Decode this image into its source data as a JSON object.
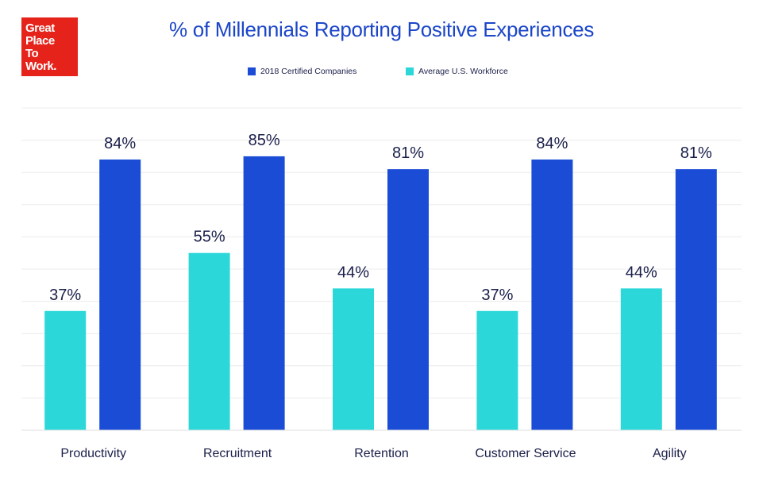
{
  "logo": {
    "lines": [
      "Great",
      "Place",
      "To",
      "Work."
    ]
  },
  "colors": {
    "series_a": "#2cd7da",
    "series_b": "#1b4cd6",
    "title": "#1b46c9",
    "labels": "#1a1f4a",
    "logo": "#e5231b"
  },
  "chart_data": {
    "type": "bar",
    "title": "% of Millennials Reporting Positive Experiences",
    "categories": [
      "Productivity",
      "Recruitment",
      "Retention",
      "Customer Service",
      "Agility"
    ],
    "series": [
      {
        "name": "Average U.S. Workforce",
        "values": [
          37,
          55,
          44,
          37,
          44
        ]
      },
      {
        "name": "2018 Certified Companies",
        "values": [
          84,
          85,
          81,
          84,
          81
        ]
      }
    ],
    "legend_order": [
      1,
      0
    ],
    "legend_position": "top-center",
    "value_suffix": "%",
    "ylim": [
      0,
      100
    ],
    "grid": true,
    "xlabel": "",
    "ylabel": ""
  }
}
